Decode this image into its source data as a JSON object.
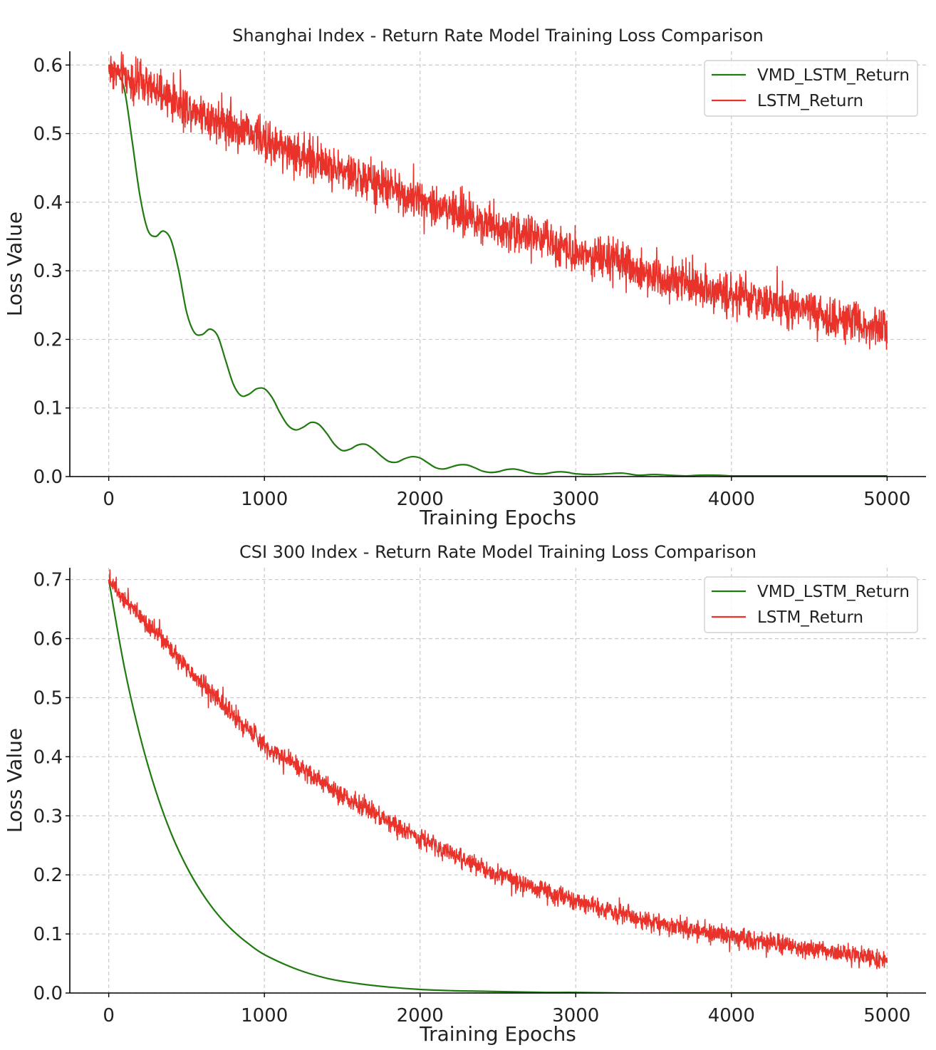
{
  "chart_data": [
    {
      "type": "line",
      "title": "Shanghai Index - Return Rate Model Training Loss Comparison",
      "xlabel": "Training Epochs",
      "ylabel": "Loss Value",
      "xlim": [
        -250,
        5250
      ],
      "ylim": [
        0.0,
        0.62
      ],
      "xticks": [
        0,
        1000,
        2000,
        3000,
        4000,
        5000
      ],
      "xtick_labels": [
        "0",
        "1000",
        "2000",
        "3000",
        "4000",
        "5000"
      ],
      "yticks": [
        0.0,
        0.1,
        0.2,
        0.3,
        0.4,
        0.5,
        0.6
      ],
      "ytick_labels": [
        "0.0",
        "0.1",
        "0.2",
        "0.3",
        "0.4",
        "0.5",
        "0.6"
      ],
      "grid": true,
      "legend_position": "top-right",
      "series": [
        {
          "name": "VMD_LSTM_Return",
          "color": "#1f7a0f",
          "style": "smooth",
          "x": [
            0,
            50,
            100,
            150,
            200,
            250,
            300,
            350,
            400,
            450,
            500,
            550,
            600,
            650,
            700,
            750,
            800,
            850,
            900,
            950,
            1000,
            1050,
            1100,
            1150,
            1200,
            1250,
            1300,
            1350,
            1400,
            1450,
            1500,
            1550,
            1600,
            1650,
            1700,
            1750,
            1800,
            1850,
            1900,
            1950,
            2000,
            2050,
            2100,
            2150,
            2200,
            2250,
            2300,
            2350,
            2400,
            2450,
            2500,
            2550,
            2600,
            2650,
            2700,
            2750,
            2800,
            2850,
            2900,
            2950,
            3000,
            3100,
            3200,
            3300,
            3400,
            3500,
            3600,
            3700,
            3800,
            3900,
            4000,
            4100,
            4200,
            4300,
            4400,
            4500,
            4600,
            4700,
            4800,
            4900,
            5000
          ],
          "y": [
            0.6,
            0.59,
            0.565,
            0.49,
            0.41,
            0.36,
            0.35,
            0.358,
            0.345,
            0.3,
            0.24,
            0.21,
            0.207,
            0.215,
            0.205,
            0.17,
            0.135,
            0.118,
            0.12,
            0.128,
            0.128,
            0.115,
            0.093,
            0.075,
            0.068,
            0.072,
            0.079,
            0.076,
            0.063,
            0.047,
            0.038,
            0.04,
            0.046,
            0.047,
            0.04,
            0.03,
            0.022,
            0.021,
            0.026,
            0.029,
            0.027,
            0.02,
            0.013,
            0.011,
            0.014,
            0.017,
            0.017,
            0.013,
            0.008,
            0.006,
            0.007,
            0.01,
            0.011,
            0.009,
            0.006,
            0.004,
            0.004,
            0.006,
            0.007,
            0.006,
            0.004,
            0.003,
            0.004,
            0.005,
            0.002,
            0.003,
            0.002,
            0.001,
            0.002,
            0.002,
            0.001,
            0.001,
            0.001,
            0.001,
            0.001,
            0.001,
            0.001,
            0.001,
            0.001,
            0.001,
            0.001
          ]
        },
        {
          "name": "LSTM_Return",
          "color": "#e8322a",
          "style": "noisy",
          "trend_x": [
            0,
            500,
            1000,
            1500,
            2000,
            2500,
            3000,
            3500,
            4000,
            4500,
            5000
          ],
          "trend_y": [
            0.595,
            0.54,
            0.49,
            0.445,
            0.405,
            0.365,
            0.33,
            0.295,
            0.265,
            0.24,
            0.215
          ],
          "noise_amplitude": 0.022
        }
      ]
    },
    {
      "type": "line",
      "title": "CSI 300 Index - Return Rate Model Training Loss Comparison",
      "xlabel": "Training Epochs",
      "ylabel": "Loss Value",
      "xlim": [
        -250,
        5250
      ],
      "ylim": [
        0.0,
        0.72
      ],
      "xticks": [
        0,
        1000,
        2000,
        3000,
        4000,
        5000
      ],
      "xtick_labels": [
        "0",
        "1000",
        "2000",
        "3000",
        "4000",
        "5000"
      ],
      "yticks": [
        0.0,
        0.1,
        0.2,
        0.3,
        0.4,
        0.5,
        0.6,
        0.7
      ],
      "ytick_labels": [
        "0.0",
        "0.1",
        "0.2",
        "0.3",
        "0.4",
        "0.5",
        "0.6",
        "0.7"
      ],
      "grid": true,
      "legend_position": "top-right",
      "series": [
        {
          "name": "VMD_LSTM_Return",
          "color": "#1f7a0f",
          "style": "smooth",
          "x": [
            0,
            100,
            200,
            300,
            400,
            500,
            600,
            700,
            800,
            900,
            1000,
            1200,
            1400,
            1600,
            1800,
            2000,
            2200,
            2400,
            2600,
            2800,
            3000,
            3300,
            3600,
            4000,
            4500,
            5000
          ],
          "y": [
            0.7,
            0.552,
            0.436,
            0.344,
            0.271,
            0.214,
            0.169,
            0.133,
            0.105,
            0.083,
            0.065,
            0.041,
            0.025,
            0.016,
            0.01,
            0.006,
            0.004,
            0.003,
            0.002,
            0.001,
            0.001,
            0.0,
            0.0,
            0.0,
            0.0,
            0.0
          ]
        },
        {
          "name": "LSTM_Return",
          "color": "#e8322a",
          "style": "noisy",
          "trend_x": [
            0,
            500,
            1000,
            1500,
            2000,
            2500,
            3000,
            3500,
            4000,
            4500,
            5000
          ],
          "trend_y": [
            0.7,
            0.55,
            0.42,
            0.335,
            0.26,
            0.2,
            0.155,
            0.12,
            0.095,
            0.075,
            0.057
          ],
          "noise_amplitude": 0.012
        }
      ]
    }
  ]
}
